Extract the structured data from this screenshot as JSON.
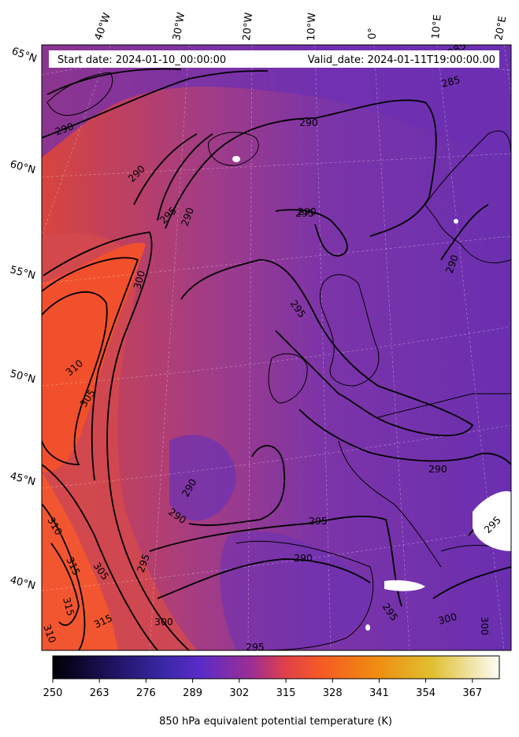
{
  "header": {
    "start_date": "Start date: 2024-01-10_00:00:00",
    "valid_date": "Valid_date: 2024-01-11T19:00:00.00"
  },
  "longitude_labels": [
    "40°W",
    "30°W",
    "20°W",
    "10°W",
    "0°",
    "10°E",
    "20°E"
  ],
  "latitude_labels": [
    "65°N",
    "60°N",
    "55°N",
    "50°N",
    "45°N",
    "40°N"
  ],
  "contour_labels": [
    "290",
    "290",
    "290",
    "290",
    "295",
    "295",
    "300",
    "310",
    "305",
    "290",
    "295",
    "295",
    "290",
    "295",
    "290",
    "285",
    "290",
    "310",
    "315",
    "315",
    "305",
    "295",
    "300",
    "315",
    "310",
    "290",
    "290",
    "295",
    "300",
    "300",
    "295",
    "285"
  ],
  "colorbar": {
    "ticks": [
      "250",
      "263",
      "276",
      "289",
      "302",
      "315",
      "328",
      "341",
      "354",
      "367"
    ],
    "label": "850 hPa equivalent potential temperature (K)"
  },
  "colors": {
    "warm_core": "#f25a2a",
    "background_field": "#7030b0",
    "colormap": "plasma-like"
  }
}
